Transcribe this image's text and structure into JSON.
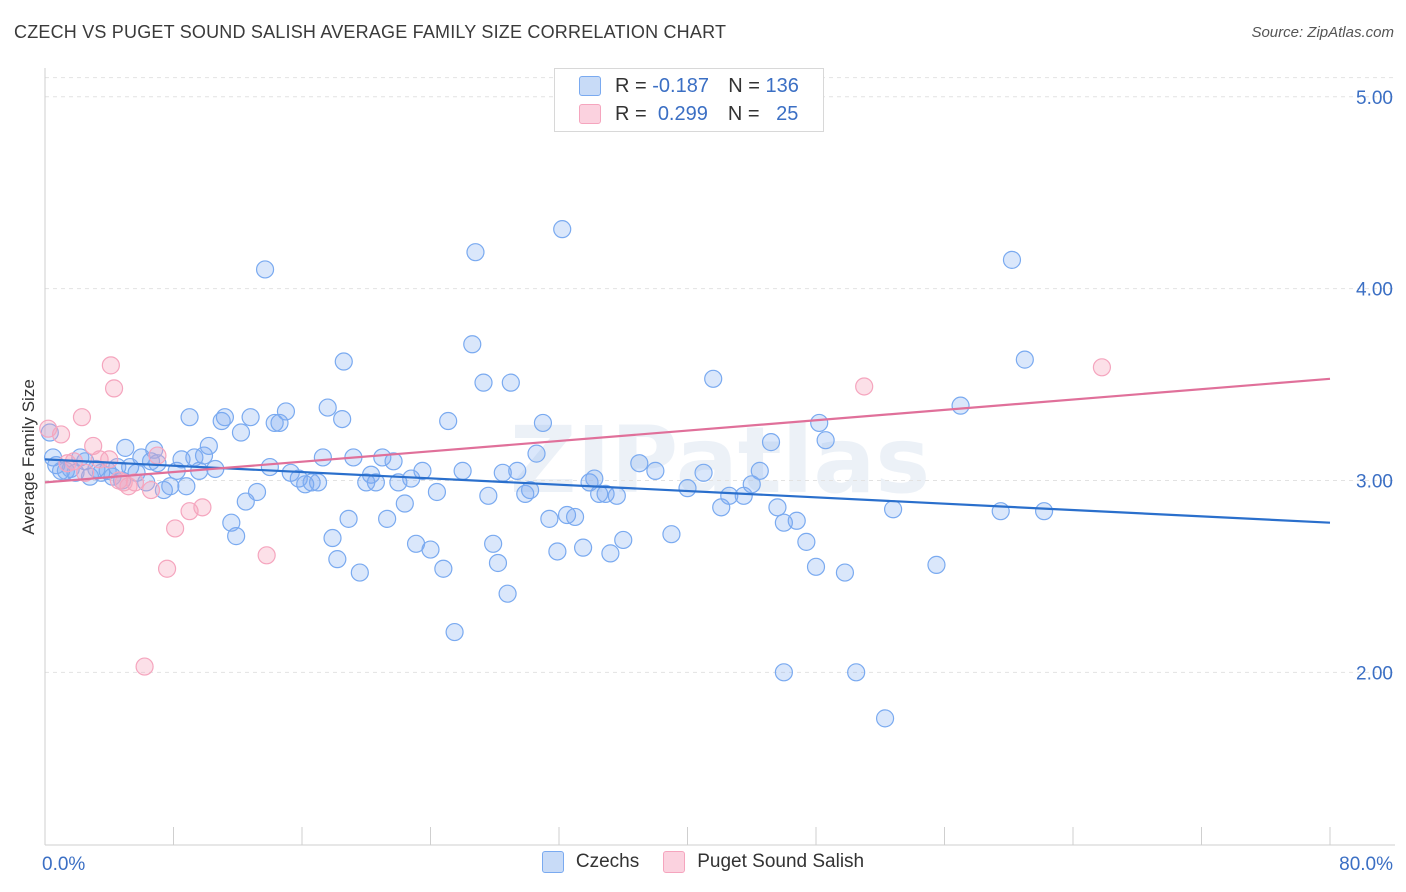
{
  "title": "CZECH VS PUGET SOUND SALISH AVERAGE FAMILY SIZE CORRELATION CHART",
  "source": "Source: ZipAtlas.com",
  "watermark": "ZIPatlas",
  "legend_top": [
    {
      "r_label": "R =",
      "r_value": "-0.187",
      "n_label": "N =",
      "n_value": "136",
      "color": "#7aaaf0"
    },
    {
      "r_label": "R =",
      "r_value": "0.299",
      "n_label": "N =",
      "n_value": "25",
      "color": "#f5a5be"
    }
  ],
  "chart_data": {
    "type": "scatter",
    "title": "CZECH VS PUGET SOUND SALISH AVERAGE FAMILY SIZE CORRELATION CHART",
    "xlabel": "",
    "ylabel": "Average Family Size",
    "xlim": [
      0,
      80
    ],
    "ylim": [
      1.1,
      5.15
    ],
    "x_tick_labels": [
      "0.0%",
      "80.0%"
    ],
    "y_ticks": [
      2.0,
      3.0,
      4.0,
      5.0
    ],
    "y_tick_labels": [
      "2.00",
      "3.00",
      "4.00",
      "5.00"
    ],
    "grid": true,
    "legend_position": "bottom",
    "series": [
      {
        "name": "Czechs",
        "color": "#7aaaf0",
        "line_color": "#2a6fcc",
        "trend": {
          "x": [
            0,
            80
          ],
          "y": [
            3.11,
            2.78
          ]
        },
        "points": [
          [
            0.3,
            3.25
          ],
          [
            0.5,
            3.12
          ],
          [
            0.7,
            3.08
          ],
          [
            1.0,
            3.05
          ],
          [
            1.3,
            3.05
          ],
          [
            1.6,
            3.06
          ],
          [
            1.9,
            3.04
          ],
          [
            2.2,
            3.12
          ],
          [
            2.5,
            3.1
          ],
          [
            2.8,
            3.02
          ],
          [
            3.2,
            3.06
          ],
          [
            3.5,
            3.04
          ],
          [
            3.9,
            3.05
          ],
          [
            4.2,
            3.02
          ],
          [
            4.5,
            3.07
          ],
          [
            4.8,
            3.0
          ],
          [
            5.0,
            3.17
          ],
          [
            5.3,
            3.07
          ],
          [
            5.7,
            3.04
          ],
          [
            6.0,
            3.12
          ],
          [
            6.3,
            2.99
          ],
          [
            6.6,
            3.1
          ],
          [
            6.8,
            3.16
          ],
          [
            7.0,
            3.09
          ],
          [
            7.4,
            2.95
          ],
          [
            7.8,
            2.97
          ],
          [
            8.2,
            3.05
          ],
          [
            8.5,
            3.11
          ],
          [
            8.8,
            2.97
          ],
          [
            9.0,
            3.33
          ],
          [
            9.3,
            3.12
          ],
          [
            9.6,
            3.05
          ],
          [
            9.9,
            3.13
          ],
          [
            10.2,
            3.18
          ],
          [
            10.6,
            3.06
          ],
          [
            11.0,
            3.31
          ],
          [
            11.2,
            3.33
          ],
          [
            11.6,
            2.78
          ],
          [
            11.9,
            2.71
          ],
          [
            12.2,
            3.25
          ],
          [
            12.5,
            2.89
          ],
          [
            12.8,
            3.33
          ],
          [
            13.2,
            2.94
          ],
          [
            13.7,
            4.1
          ],
          [
            14.0,
            3.07
          ],
          [
            14.3,
            3.3
          ],
          [
            14.6,
            3.3
          ],
          [
            15.0,
            3.36
          ],
          [
            15.3,
            3.04
          ],
          [
            15.8,
            3.01
          ],
          [
            16.2,
            2.98
          ],
          [
            16.6,
            2.99
          ],
          [
            17.0,
            2.99
          ],
          [
            17.3,
            3.12
          ],
          [
            17.6,
            3.38
          ],
          [
            17.9,
            2.7
          ],
          [
            18.2,
            2.59
          ],
          [
            18.5,
            3.32
          ],
          [
            18.6,
            3.62
          ],
          [
            18.9,
            2.8
          ],
          [
            19.2,
            3.12
          ],
          [
            19.6,
            2.52
          ],
          [
            20.0,
            2.99
          ],
          [
            20.3,
            3.03
          ],
          [
            20.6,
            2.99
          ],
          [
            21.0,
            3.12
          ],
          [
            21.3,
            2.8
          ],
          [
            21.7,
            3.1
          ],
          [
            22.0,
            2.99
          ],
          [
            22.4,
            2.88
          ],
          [
            22.8,
            3.01
          ],
          [
            23.1,
            2.67
          ],
          [
            23.5,
            3.05
          ],
          [
            24.0,
            2.64
          ],
          [
            24.4,
            2.94
          ],
          [
            24.8,
            2.54
          ],
          [
            25.1,
            3.31
          ],
          [
            25.5,
            2.21
          ],
          [
            26.0,
            3.05
          ],
          [
            26.6,
            3.71
          ],
          [
            26.8,
            4.19
          ],
          [
            27.3,
            3.51
          ],
          [
            27.6,
            2.92
          ],
          [
            27.9,
            2.67
          ],
          [
            28.2,
            2.57
          ],
          [
            28.5,
            3.04
          ],
          [
            28.8,
            2.41
          ],
          [
            29.0,
            3.51
          ],
          [
            29.4,
            3.05
          ],
          [
            29.9,
            2.93
          ],
          [
            30.2,
            2.95
          ],
          [
            30.6,
            3.14
          ],
          [
            31.0,
            3.3
          ],
          [
            31.4,
            2.8
          ],
          [
            31.9,
            2.63
          ],
          [
            32.2,
            4.31
          ],
          [
            32.5,
            2.82
          ],
          [
            33.0,
            2.81
          ],
          [
            33.5,
            2.65
          ],
          [
            33.9,
            2.99
          ],
          [
            34.2,
            3.01
          ],
          [
            34.5,
            2.93
          ],
          [
            34.9,
            2.93
          ],
          [
            35.2,
            2.62
          ],
          [
            35.6,
            2.92
          ],
          [
            36.0,
            2.69
          ],
          [
            37.0,
            3.09
          ],
          [
            38.0,
            3.05
          ],
          [
            39.0,
            2.72
          ],
          [
            40.0,
            2.96
          ],
          [
            41.0,
            3.04
          ],
          [
            41.6,
            3.53
          ],
          [
            42.1,
            2.86
          ],
          [
            42.6,
            2.92
          ],
          [
            43.5,
            2.92
          ],
          [
            44.0,
            2.98
          ],
          [
            44.5,
            3.05
          ],
          [
            45.2,
            3.2
          ],
          [
            45.6,
            2.86
          ],
          [
            46.0,
            2.78
          ],
          [
            46.8,
            2.79
          ],
          [
            47.4,
            2.68
          ],
          [
            48.0,
            2.55
          ],
          [
            48.2,
            3.3
          ],
          [
            48.6,
            3.21
          ],
          [
            49.8,
            2.52
          ],
          [
            50.5,
            2.0
          ],
          [
            52.3,
            1.76
          ],
          [
            52.8,
            2.85
          ],
          [
            55.5,
            2.56
          ],
          [
            57.0,
            3.39
          ],
          [
            59.5,
            2.84
          ],
          [
            60.2,
            4.15
          ],
          [
            61.0,
            3.63
          ],
          [
            62.2,
            2.84
          ],
          [
            46.0,
            2.0
          ]
        ]
      },
      {
        "name": "Puget Sound Salish",
        "color": "#f5a5be",
        "line_color": "#e0709a",
        "trend": {
          "x": [
            0,
            80
          ],
          "y": [
            2.99,
            3.53
          ]
        },
        "points": [
          [
            0.2,
            3.27
          ],
          [
            1.0,
            3.24
          ],
          [
            1.4,
            3.09
          ],
          [
            1.8,
            3.1
          ],
          [
            2.3,
            3.33
          ],
          [
            2.5,
            3.04
          ],
          [
            3.0,
            3.18
          ],
          [
            3.4,
            3.11
          ],
          [
            4.1,
            3.6
          ],
          [
            4.3,
            3.48
          ],
          [
            4.6,
            3.0
          ],
          [
            4.9,
            2.99
          ],
          [
            5.2,
            2.97
          ],
          [
            5.6,
            2.99
          ],
          [
            6.2,
            2.03
          ],
          [
            6.6,
            2.95
          ],
          [
            7.0,
            3.13
          ],
          [
            7.6,
            2.54
          ],
          [
            8.1,
            2.75
          ],
          [
            9.0,
            2.84
          ],
          [
            9.8,
            2.86
          ],
          [
            13.8,
            2.61
          ],
          [
            51.0,
            3.49
          ],
          [
            65.8,
            3.59
          ],
          [
            4.0,
            3.11
          ]
        ]
      }
    ]
  }
}
